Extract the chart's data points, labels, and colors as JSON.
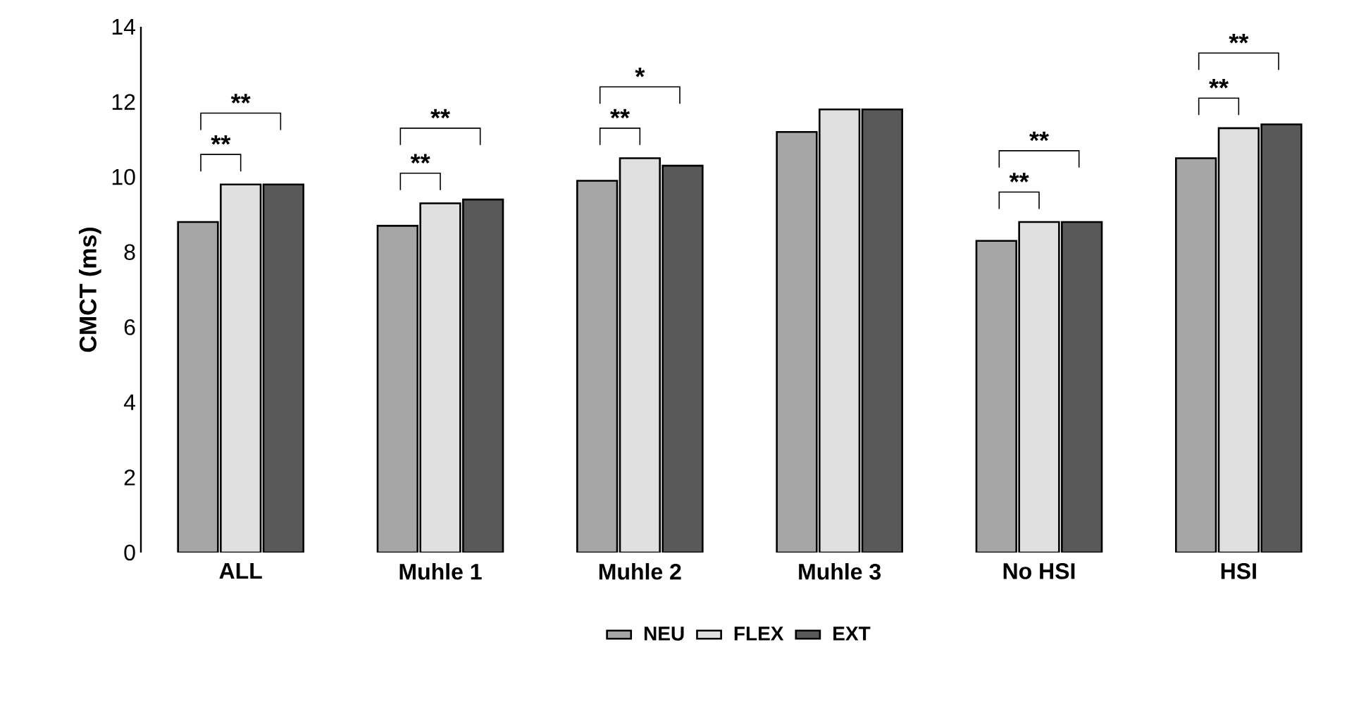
{
  "chart_data": {
    "type": "bar",
    "ylabel": "CMCT (ms)",
    "categories": [
      "ALL",
      "Muhle 1",
      "Muhle 2",
      "Muhle 3",
      "No HSI",
      "HSI"
    ],
    "series": [
      {
        "name": "NEU",
        "color": "#a6a6a6",
        "values": [
          8.8,
          8.7,
          9.9,
          11.2,
          8.3,
          10.5
        ]
      },
      {
        "name": "FLEX",
        "color": "#e0e0e0",
        "values": [
          9.8,
          9.3,
          10.5,
          11.8,
          8.8,
          11.3
        ]
      },
      {
        "name": "EXT",
        "color": "#595959",
        "values": [
          9.8,
          9.4,
          10.3,
          11.8,
          8.8,
          11.4
        ]
      }
    ],
    "ylim": [
      0,
      14
    ],
    "yticks": [
      0,
      2,
      4,
      6,
      8,
      10,
      12,
      14
    ],
    "grid": false,
    "legend": "bottom",
    "annotations": [
      "**",
      "**",
      "**",
      "**",
      "**",
      "*",
      "**",
      "**",
      "**",
      "**"
    ]
  }
}
